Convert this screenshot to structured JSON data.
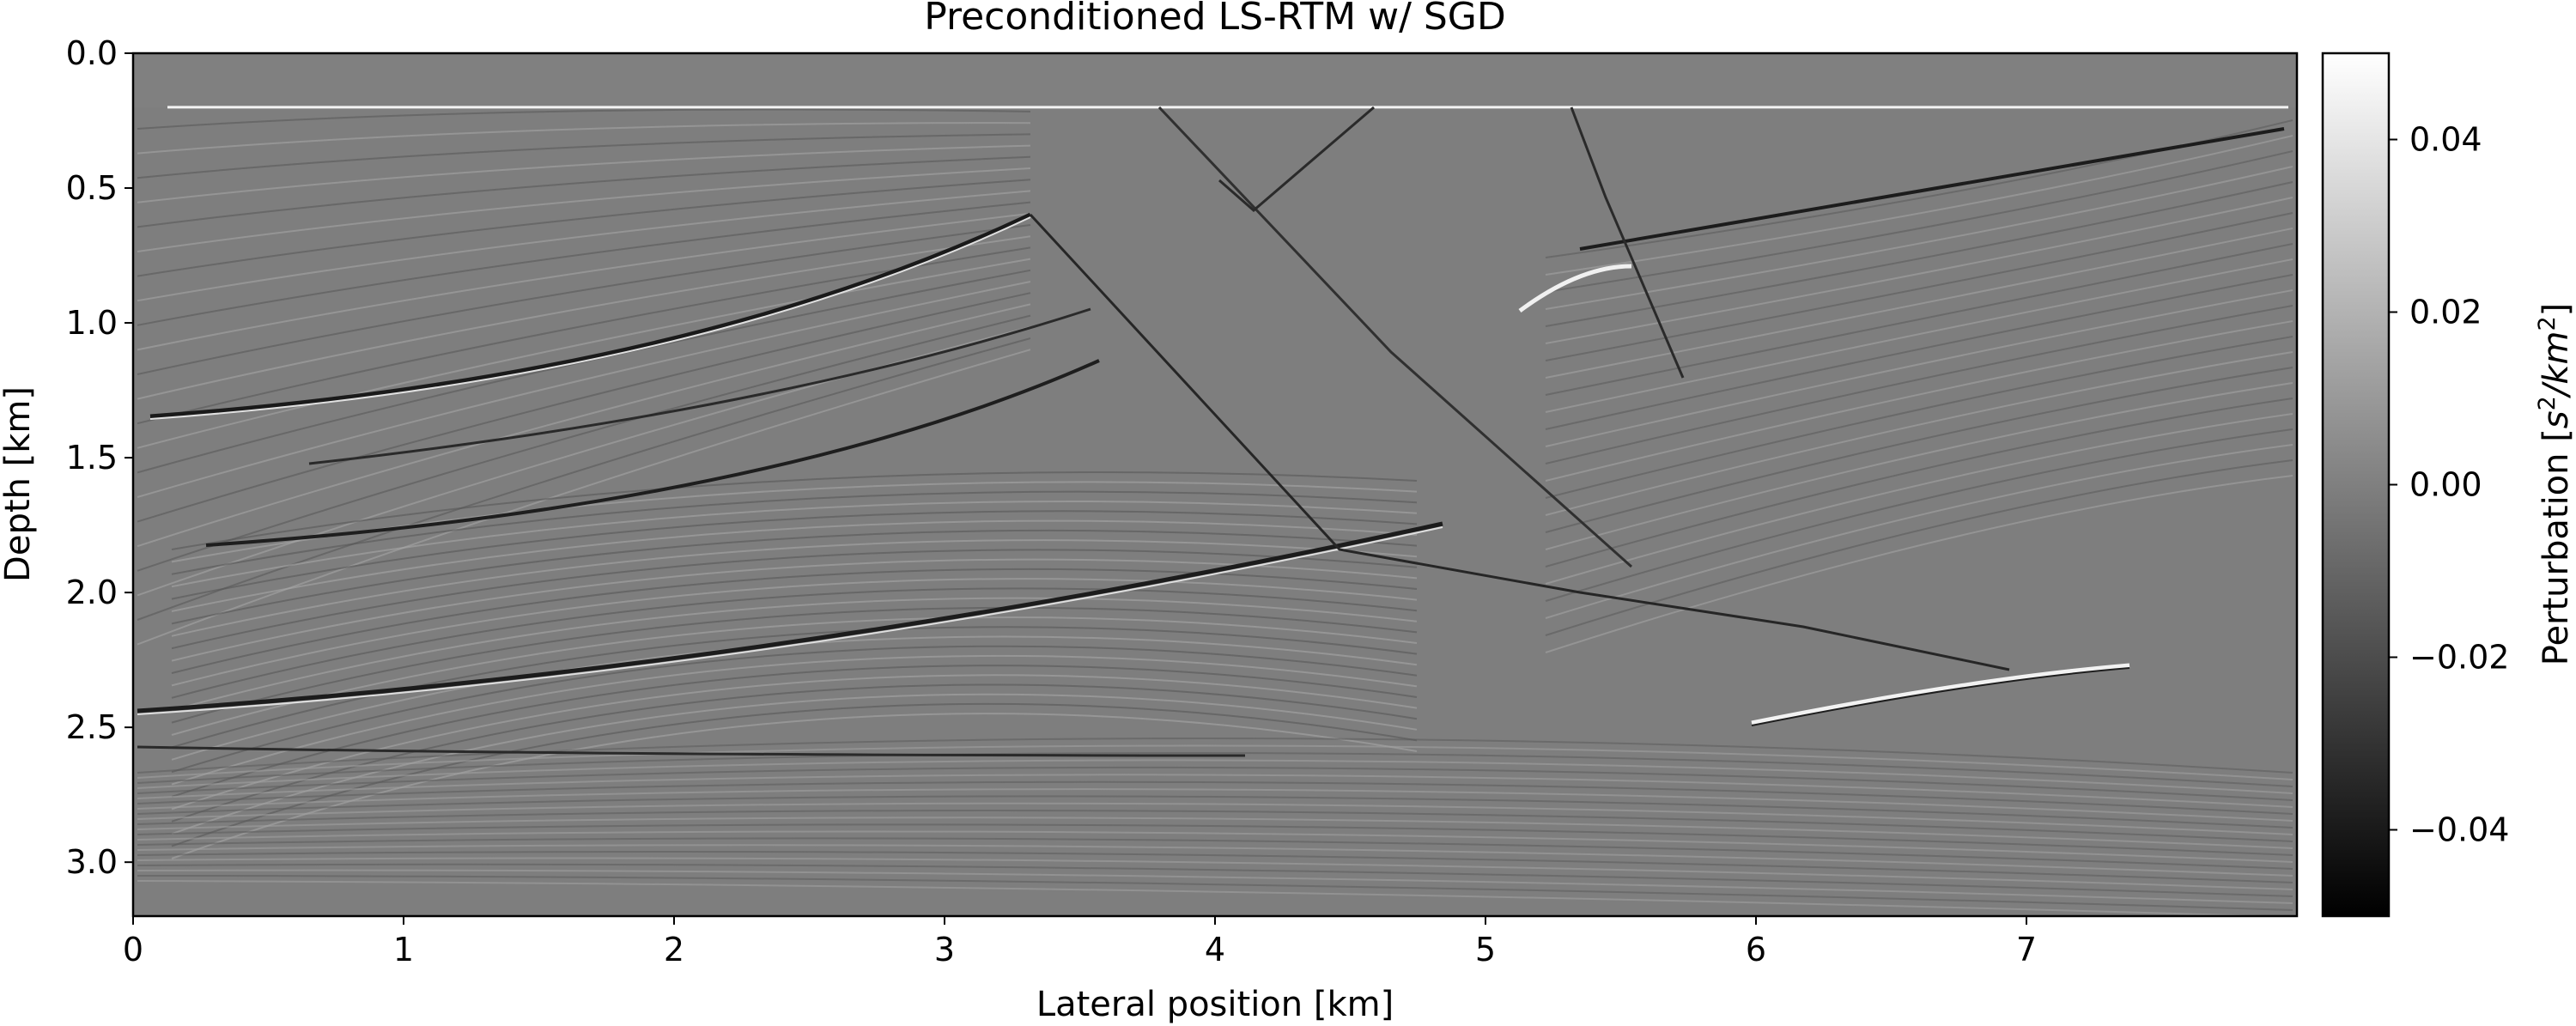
{
  "chart_data": {
    "type": "heatmap",
    "title": "Preconditioned LS-RTM w/ SGD",
    "xlabel": "Lateral position [km]",
    "ylabel": "Depth [km]",
    "xlim": [
      0,
      8.0
    ],
    "ylim": [
      3.2,
      0.0
    ],
    "xticks": [
      0,
      1,
      2,
      3,
      4,
      5,
      6,
      7
    ],
    "xtick_labels": [
      "0",
      "1",
      "2",
      "3",
      "4",
      "5",
      "6",
      "7"
    ],
    "yticks": [
      0.0,
      0.5,
      1.0,
      1.5,
      2.0,
      2.5,
      3.0
    ],
    "ytick_labels": [
      "0.0",
      "0.5",
      "1.0",
      "1.5",
      "2.0",
      "2.5",
      "3.0"
    ],
    "colormap": "gray",
    "colorbar": {
      "label": "Perturbation [s²/km²]",
      "label_base": "Perturbation [",
      "label_unit_s": "s",
      "label_unit_sup1": "2",
      "label_unit_mid": "/km",
      "label_unit_sup2": "2",
      "label_end": "]",
      "vmin": -0.05,
      "vmax": 0.05,
      "ticks": [
        0.04,
        0.02,
        0.0,
        -0.02,
        -0.04
      ],
      "tick_labels": [
        "0.04",
        "0.02",
        "0.00",
        "−0.02",
        "−0.04"
      ]
    },
    "water_layer_depth_km": 0.2,
    "background_value": 0.0,
    "grid": false
  }
}
